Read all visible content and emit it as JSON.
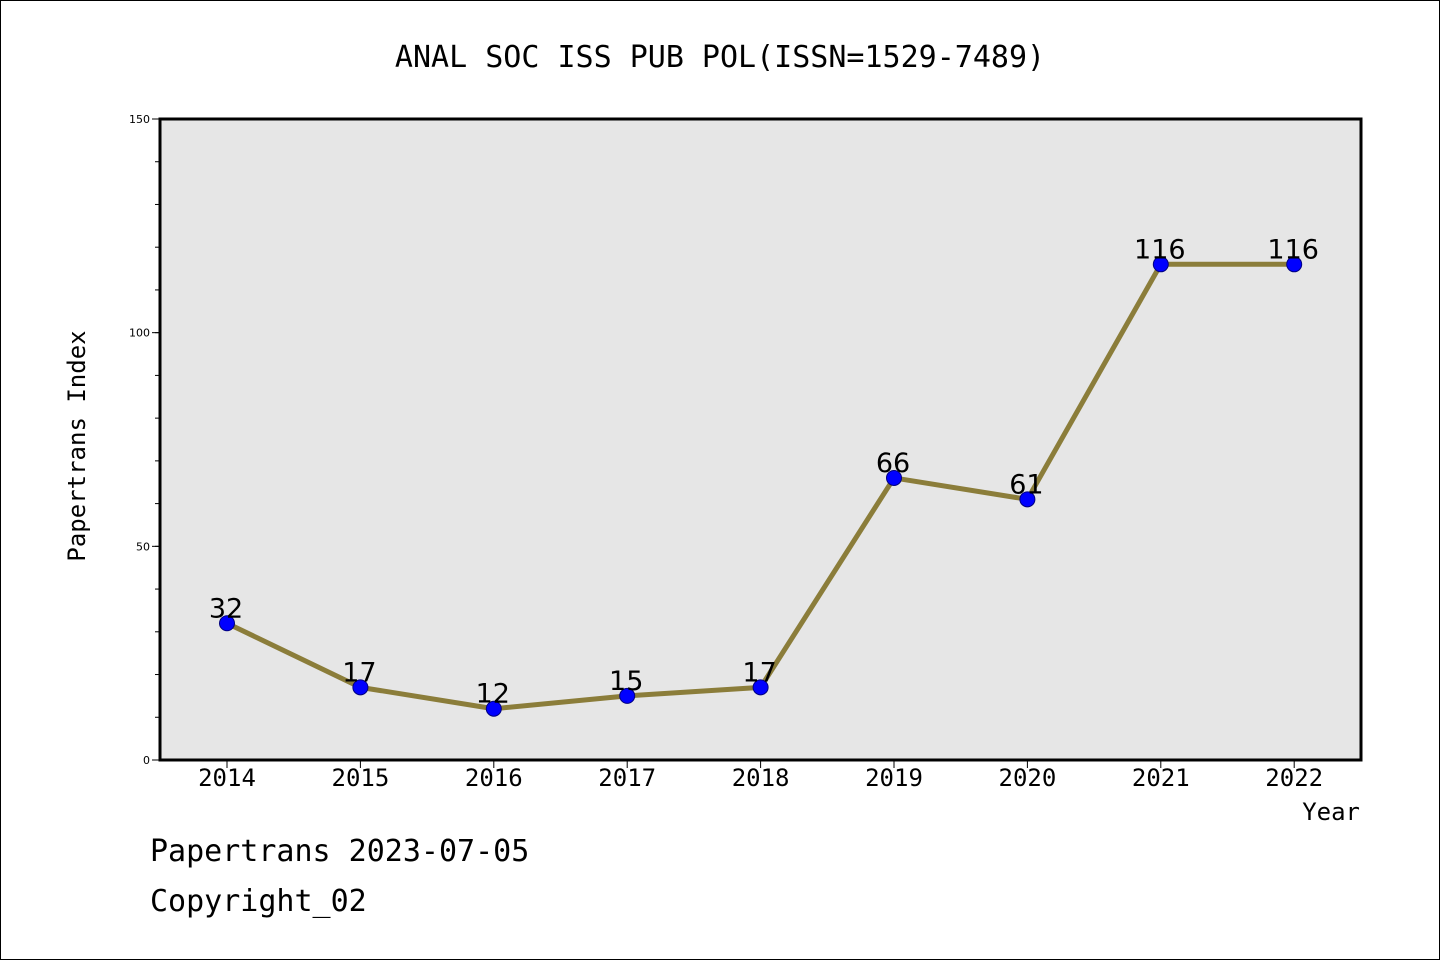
{
  "chart_data": {
    "type": "line",
    "title": "ANAL SOC ISS PUB POL(ISSN=1529-7489)",
    "xlabel": "Year",
    "ylabel": "Papertrans Index",
    "categories": [
      "2014",
      "2015",
      "2016",
      "2017",
      "2018",
      "2019",
      "2020",
      "2021",
      "2022"
    ],
    "series": [
      {
        "values": [
          32,
          17,
          12,
          15,
          17,
          66,
          61,
          116,
          116
        ],
        "value_labels": [
          "32",
          "17",
          "12",
          "15",
          "17",
          "66",
          "61",
          "116",
          "116"
        ]
      }
    ],
    "y_tick_labels": [
      "0",
      "50",
      "100",
      "150"
    ],
    "y_tick_values": [
      0,
      50,
      100,
      150
    ],
    "ylim": [
      0,
      150
    ],
    "y_minor_step": 10,
    "grid": false,
    "colors": {
      "line": "#8b7d3a",
      "marker_fill": "#0000ff",
      "marker_edge": "#000080",
      "plot_background": "#e6e6e6"
    }
  },
  "footer": {
    "date_text": "Papertrans 2023-07-05",
    "copyright_text": "Copyright_02"
  }
}
